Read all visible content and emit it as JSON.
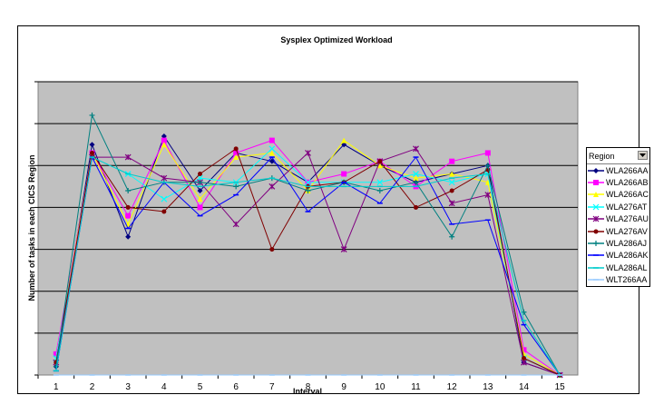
{
  "chart_data": {
    "type": "line",
    "title": "Sysplex Optimized Workload",
    "xlabel": "Interval",
    "ylabel": "Number of tasks in each CICS Region",
    "categories": [
      "1",
      "2",
      "3",
      "4",
      "5",
      "6",
      "7",
      "8",
      "9",
      "10",
      "11",
      "12",
      "13",
      "14",
      "15"
    ],
    "ylim": [
      0,
      7
    ],
    "grid": "horizontal",
    "legend_title": "Region",
    "legend_position": "right",
    "series": [
      {
        "name": "WLA266AA",
        "color": "#000080",
        "marker": "diamond",
        "values": [
          0.2,
          5.5,
          3.3,
          5.7,
          4.4,
          5.3,
          5.1,
          4.6,
          5.5,
          5.0,
          4.6,
          4.8,
          5.0,
          0.3,
          0.0
        ]
      },
      {
        "name": "WLA266AB",
        "color": "#ff00ff",
        "marker": "square",
        "values": [
          0.5,
          5.3,
          3.8,
          5.6,
          4.0,
          5.3,
          5.6,
          4.6,
          4.8,
          5.1,
          4.5,
          5.1,
          5.3,
          0.6,
          0.0
        ]
      },
      {
        "name": "WLA266AC",
        "color": "#ffff00",
        "marker": "triangle",
        "values": [
          0.4,
          5.3,
          3.6,
          5.5,
          4.2,
          5.2,
          5.3,
          4.4,
          5.6,
          5.0,
          4.7,
          4.8,
          4.6,
          0.5,
          0.0
        ]
      },
      {
        "name": "WLA276AT",
        "color": "#00ffff",
        "marker": "x",
        "values": [
          0.4,
          5.2,
          4.8,
          4.2,
          4.7,
          4.6,
          5.4,
          4.6,
          4.6,
          4.6,
          4.8,
          4.6,
          4.8,
          0.4,
          0.0
        ]
      },
      {
        "name": "WLA276AU",
        "color": "#800080",
        "marker": "star",
        "values": [
          0.3,
          5.2,
          5.2,
          4.7,
          4.6,
          3.6,
          4.5,
          5.3,
          3.0,
          5.1,
          5.4,
          4.1,
          4.3,
          0.3,
          0.0
        ]
      },
      {
        "name": "WLA276AV",
        "color": "#800000",
        "marker": "circle",
        "values": [
          0.3,
          5.3,
          4.0,
          3.9,
          4.8,
          5.4,
          3.0,
          4.5,
          4.6,
          5.1,
          4.0,
          4.4,
          4.9,
          0.4,
          0.0
        ]
      },
      {
        "name": "WLA286AJ",
        "color": "#008080",
        "marker": "plus",
        "values": [
          0.2,
          6.2,
          4.4,
          4.6,
          4.6,
          4.5,
          4.7,
          4.4,
          4.6,
          4.4,
          4.6,
          3.3,
          5.0,
          1.5,
          0.0
        ]
      },
      {
        "name": "WLA286AK",
        "color": "#0000ff",
        "marker": "dash",
        "values": [
          0.1,
          5.2,
          3.5,
          4.6,
          3.8,
          4.3,
          5.2,
          3.9,
          4.6,
          4.1,
          5.2,
          3.6,
          3.7,
          1.2,
          0.0
        ]
      },
      {
        "name": "WLA286AL",
        "color": "#00cccc",
        "marker": "dash",
        "values": [
          0.1,
          5.2,
          4.8,
          4.6,
          4.5,
          4.6,
          4.7,
          4.5,
          4.5,
          4.5,
          4.5,
          4.7,
          4.8,
          1.3,
          0.0
        ]
      },
      {
        "name": "WLT266AA",
        "color": "#99ccff",
        "marker": "dash",
        "values": [
          0.0,
          0.0,
          0.0,
          0.0,
          0.0,
          0.0,
          0.0,
          0.0,
          0.0,
          0.0,
          0.0,
          0.0,
          0.0,
          0.0,
          0.0
        ]
      }
    ]
  }
}
